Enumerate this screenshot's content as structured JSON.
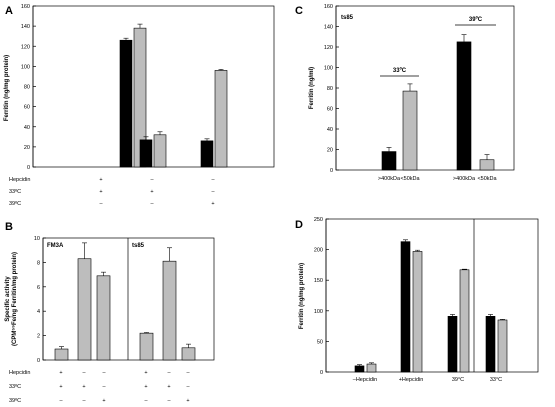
{
  "chart_data": [
    {
      "panel": "A",
      "type": "bar",
      "ylabel": "Ferritin (ng/mg protein)",
      "ylim": [
        0,
        160
      ],
      "yticks": [
        0,
        20,
        40,
        60,
        80,
        100,
        120,
        140,
        160
      ],
      "groups": 3,
      "series": [
        {
          "color": "#000000",
          "values": [
            126,
            27,
            26
          ],
          "errors": [
            2,
            3,
            2
          ]
        },
        {
          "color": "#bdbdbd",
          "values": [
            138,
            32,
            96
          ],
          "errors": [
            4,
            3,
            1
          ]
        }
      ],
      "condition_rows": [
        {
          "label": "Hepcidin",
          "marks": [
            "+",
            "–",
            "–"
          ]
        },
        {
          "label": "33ºC",
          "marks": [
            "+",
            "+",
            "–"
          ]
        },
        {
          "label": "39ºC",
          "marks": [
            "–",
            "–",
            "+"
          ]
        }
      ]
    },
    {
      "panel": "B",
      "type": "bar",
      "ylabel": "Specific activity (CPM⁵⁹Fe/ng Ferritin/mg protein)",
      "ylim": [
        0,
        10
      ],
      "yticks": [
        0,
        2,
        4,
        6,
        8,
        10
      ],
      "subpanels": [
        {
          "name": "FM3A",
          "values": [
            0.9,
            8.3,
            6.9
          ],
          "errors": [
            0.2,
            1.3,
            0.3
          ]
        },
        {
          "name": "ts85",
          "values": [
            2.2,
            8.1,
            1.0
          ],
          "errors": [
            0.05,
            1.1,
            0.3
          ]
        }
      ],
      "condition_rows": [
        {
          "label": "Hepcidin",
          "marks": [
            "+",
            "–",
            "–",
            "+",
            "–",
            "–"
          ]
        },
        {
          "label": "33ºC",
          "marks": [
            "+",
            "+",
            "–",
            "+",
            "+",
            "–"
          ]
        },
        {
          "label": "39ºC",
          "marks": [
            "–",
            "–",
            "+",
            "–",
            "–",
            "+"
          ]
        }
      ]
    },
    {
      "panel": "C",
      "type": "bar",
      "title": "ts85",
      "ylabel": "Ferritin (ng/ml)",
      "ylim": [
        0,
        160
      ],
      "yticks": [
        0,
        20,
        40,
        60,
        80,
        100,
        120,
        140,
        160
      ],
      "groups": [
        {
          "label": "33ºC",
          "bars": [
            {
              "label": ">400kDa",
              "value": 18,
              "error": 4,
              "color": "#000000"
            },
            {
              "label": "<50kDa",
              "value": 77,
              "error": 7,
              "color": "#bdbdbd"
            }
          ]
        },
        {
          "label": "39ºC",
          "bars": [
            {
              "label": ">400kDa",
              "value": 125,
              "error": 7,
              "color": "#000000"
            },
            {
              "label": "<50kDa",
              "value": 10,
              "error": 5,
              "color": "#bdbdbd"
            }
          ]
        }
      ]
    },
    {
      "panel": "D",
      "type": "bar",
      "ylabel": "Ferritin (ng/mg protein)",
      "ylim": [
        0,
        250
      ],
      "yticks": [
        0,
        50,
        100,
        150,
        200,
        250
      ],
      "categories": [
        "–Hepcidin",
        "+Hepcidin",
        "39°C",
        "33°C"
      ],
      "series": [
        {
          "color": "#000000",
          "values": [
            10,
            213,
            91,
            91
          ],
          "errors": [
            2,
            3,
            3,
            3
          ]
        },
        {
          "color": "#bdbdbd",
          "values": [
            13,
            197,
            167,
            85
          ],
          "errors": [
            2,
            2,
            1,
            1
          ]
        }
      ]
    }
  ]
}
